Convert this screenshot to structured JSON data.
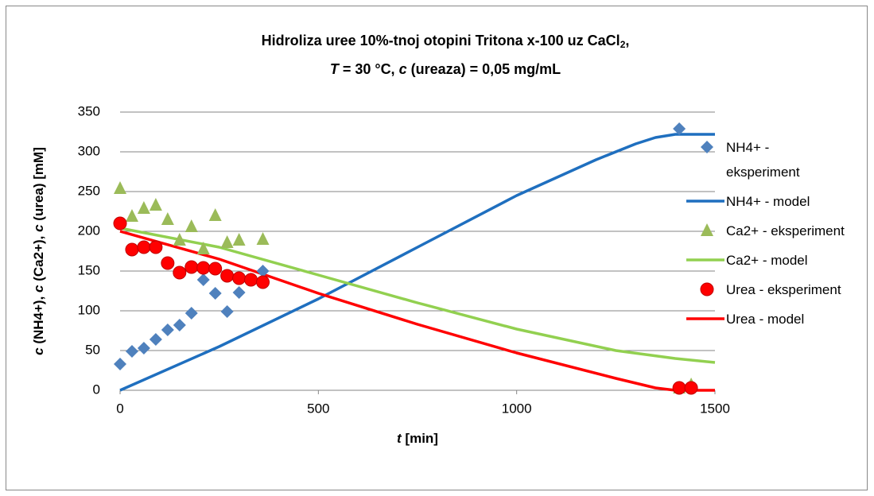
{
  "chart_data": {
    "type": "scatter",
    "title": [
      "Hidroliza uree 10%-tnoj otopini Tritona x-100 uz CaCl",
      "2",
      ",",
      "T",
      " = 30 °C, ",
      "c",
      " (ureaza) = 0,05 mg/mL"
    ],
    "x_label": [
      "t",
      " [min]"
    ],
    "y_label": [
      "c",
      " (NH4+), ",
      "c",
      " (Ca2+), ",
      "c",
      " (urea) [mM]"
    ],
    "xlim": [
      0,
      1500
    ],
    "xticks": [
      0,
      500,
      1000,
      1500
    ],
    "ylim": [
      0,
      350
    ],
    "yticks": [
      0,
      50,
      100,
      150,
      200,
      250,
      300,
      350
    ],
    "grid": true,
    "legend": "right",
    "series": [
      {
        "name": "NH4+ - eksperiment",
        "mode": "markers",
        "marker": "diamond",
        "color": "#4f81bd",
        "x": [
          0,
          30,
          60,
          90,
          120,
          150,
          180,
          210,
          240,
          270,
          300,
          330,
          360,
          1410
        ],
        "values": [
          33,
          49,
          53,
          64,
          76,
          82,
          97,
          139,
          122,
          99,
          123,
          140,
          150,
          329
        ]
      },
      {
        "name": "NH4+ - model",
        "mode": "line",
        "color": "#1f6fbf",
        "x": [
          0,
          250,
          500,
          750,
          1000,
          1200,
          1300,
          1350,
          1400,
          1500
        ],
        "values": [
          0,
          55,
          115,
          180,
          245,
          290,
          310,
          318,
          322,
          322
        ]
      },
      {
        "name": "Ca2+ - eksperiment",
        "mode": "markers",
        "marker": "triangle",
        "color": "#9bbb59",
        "x": [
          0,
          30,
          60,
          90,
          120,
          150,
          180,
          210,
          240,
          270,
          300,
          360,
          1410,
          1440
        ],
        "values": [
          254,
          219,
          229,
          233,
          215,
          189,
          206,
          178,
          220,
          186,
          189,
          190,
          3,
          7
        ]
      },
      {
        "name": "Ca2+ - model",
        "mode": "line",
        "color": "#92d050",
        "x": [
          0,
          250,
          500,
          750,
          1000,
          1250,
          1400,
          1500
        ],
        "values": [
          204,
          180,
          145,
          110,
          77,
          50,
          40,
          35
        ]
      },
      {
        "name": "Urea - eksperiment",
        "mode": "markers",
        "marker": "circle",
        "color": "#ff0000",
        "x": [
          0,
          30,
          60,
          90,
          120,
          150,
          180,
          210,
          240,
          270,
          300,
          330,
          360,
          1410,
          1440
        ],
        "values": [
          210,
          177,
          180,
          180,
          160,
          148,
          155,
          154,
          153,
          144,
          141,
          139,
          136,
          3,
          3
        ]
      },
      {
        "name": "Urea - model",
        "mode": "line",
        "color": "#ff0000",
        "x": [
          0,
          250,
          500,
          750,
          1000,
          1250,
          1350,
          1400,
          1500
        ],
        "values": [
          200,
          165,
          122,
          83,
          47,
          15,
          3,
          0,
          0
        ]
      }
    ]
  }
}
